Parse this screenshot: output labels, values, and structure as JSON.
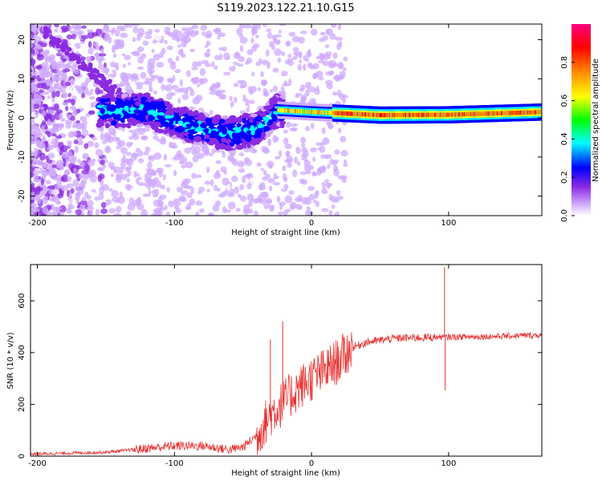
{
  "figure_title": "S119.2023.122.21.10.G15",
  "chart_data": [
    {
      "type": "heatmap",
      "xlabel": "Height of straight line (km)",
      "ylabel": "Frequency (Hz)",
      "xlim": [
        -205,
        168
      ],
      "ylim": [
        -25,
        24
      ],
      "xticks": [
        -200,
        -100,
        0,
        100
      ],
      "yticks": [
        -20,
        -10,
        0,
        10,
        20
      ],
      "colorbar": {
        "label": "Normalized spectral amplitude",
        "range": [
          0,
          1
        ],
        "ticks": [
          0.0,
          0.2,
          0.4,
          0.6,
          0.8
        ],
        "colors": [
          "#ffffff",
          "#cfa9ff",
          "#8a2be2",
          "#0000ff",
          "#00ffff",
          "#00ff00",
          "#ffff00",
          "#ff8800",
          "#ff0000",
          "#ff0080"
        ]
      },
      "ridge": {
        "description_points": [
          {
            "x": -150,
            "f": 2
          },
          {
            "x": -120,
            "f": 2
          },
          {
            "x": -100,
            "f": -1
          },
          {
            "x": -80,
            "f": -3
          },
          {
            "x": -60,
            "f": -4
          },
          {
            "x": -40,
            "f": -3
          },
          {
            "x": -25,
            "f": 2
          },
          {
            "x": 0,
            "f": 1.5
          },
          {
            "x": 50,
            "f": 0.7
          },
          {
            "x": 100,
            "f": 0.8
          },
          {
            "x": 168,
            "f": 1.5
          }
        ]
      }
    },
    {
      "type": "line",
      "xlabel": "Height of straight line (km)",
      "ylabel": "SNR (10 * v/v)",
      "xlim": [
        -205,
        168
      ],
      "ylim": [
        0,
        740
      ],
      "xticks": [
        -200,
        -100,
        0,
        100
      ],
      "yticks": [
        0,
        200,
        400,
        600
      ],
      "color": "#e8302f",
      "trend": [
        {
          "x": -205,
          "y": 8
        },
        {
          "x": -150,
          "y": 15
        },
        {
          "x": -120,
          "y": 30
        },
        {
          "x": -100,
          "y": 40
        },
        {
          "x": -80,
          "y": 40
        },
        {
          "x": -60,
          "y": 25
        },
        {
          "x": -50,
          "y": 35
        },
        {
          "x": -40,
          "y": 80
        },
        {
          "x": -30,
          "y": 160
        },
        {
          "x": -20,
          "y": 210
        },
        {
          "x": -10,
          "y": 260
        },
        {
          "x": 0,
          "y": 300
        },
        {
          "x": 10,
          "y": 330
        },
        {
          "x": 20,
          "y": 370
        },
        {
          "x": 30,
          "y": 420
        },
        {
          "x": 40,
          "y": 440
        },
        {
          "x": 60,
          "y": 455
        },
        {
          "x": 80,
          "y": 458
        },
        {
          "x": 100,
          "y": 460
        },
        {
          "x": 130,
          "y": 462
        },
        {
          "x": 168,
          "y": 468
        }
      ],
      "spikes": [
        {
          "x": -21,
          "y": 520
        },
        {
          "x": -30,
          "y": 450
        },
        {
          "x": 97,
          "y": 730
        },
        {
          "x": 97.5,
          "y": 255
        }
      ]
    }
  ]
}
